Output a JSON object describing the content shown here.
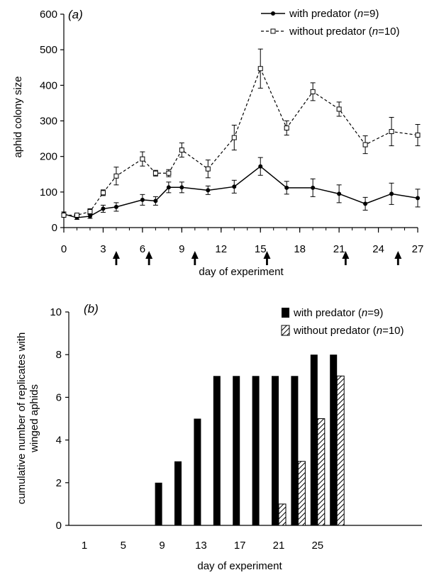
{
  "chart_data": [
    {
      "type": "line",
      "panel_label": "(a)",
      "ylabel": "aphid colony size",
      "xlabel": "day of experiment",
      "ylim": [
        0,
        600
      ],
      "xlim": [
        0,
        27
      ],
      "yticks": [
        "0",
        "100",
        "200",
        "300",
        "400",
        "500",
        "600"
      ],
      "xticks": [
        "0",
        "3",
        "6",
        "9",
        "12",
        "15",
        "18",
        "21",
        "24",
        "27"
      ],
      "arrow_days": [
        4,
        6.5,
        10,
        15.5,
        21.5,
        25.5
      ],
      "legend_position": "top-right",
      "series": [
        {
          "name": "with predator (n=9)",
          "legend_prefix": "with predator (",
          "legend_italic": "n",
          "legend_suffix": "=9)",
          "style": "solid",
          "marker": "filled-circle",
          "x": [
            0,
            1,
            2,
            3,
            4,
            6,
            7,
            8,
            9,
            11,
            13,
            15,
            17,
            19,
            21,
            23,
            25,
            27
          ],
          "y": [
            38,
            28,
            32,
            53,
            58,
            78,
            75,
            113,
            113,
            105,
            115,
            172,
            112,
            112,
            95,
            67,
            95,
            83
          ],
          "err": [
            6,
            5,
            6,
            10,
            12,
            15,
            12,
            15,
            15,
            12,
            18,
            25,
            18,
            25,
            25,
            18,
            30,
            25
          ]
        },
        {
          "name": "without predator (n=10)",
          "legend_prefix": "without predator (",
          "legend_italic": "n",
          "legend_suffix": "=10)",
          "style": "dashed",
          "marker": "open-square",
          "x": [
            0,
            1,
            2,
            3,
            4,
            6,
            7,
            8,
            9,
            11,
            13,
            15,
            17,
            19,
            21,
            23,
            25,
            27
          ],
          "y": [
            35,
            35,
            45,
            98,
            145,
            193,
            153,
            153,
            218,
            165,
            253,
            447,
            280,
            382,
            333,
            233,
            270,
            260
          ],
          "err": [
            6,
            5,
            8,
            8,
            25,
            20,
            8,
            10,
            20,
            25,
            35,
            55,
            20,
            25,
            20,
            25,
            40,
            30
          ]
        }
      ]
    },
    {
      "type": "bar",
      "panel_label": "(b)",
      "ylabel": "cumulative number of replicates with winged aphids",
      "ylabel_line1": "cumulative number of replicates with",
      "ylabel_line2": "winged aphids",
      "xlabel": "day of experiment",
      "ylim": [
        0,
        10
      ],
      "yticks": [
        "0",
        "2",
        "4",
        "6",
        "8",
        "10"
      ],
      "xticks": [
        "1",
        "5",
        "9",
        "13",
        "17",
        "21",
        "25"
      ],
      "categories": [
        1,
        3,
        5,
        7,
        9,
        11,
        13,
        15,
        17,
        19,
        21,
        23,
        25,
        27
      ],
      "legend_position": "top-right",
      "series": [
        {
          "name": "with predator (n=9)",
          "legend_prefix": "with predator (",
          "legend_italic": "n",
          "legend_suffix": "=9)",
          "fill": "#000000",
          "values": [
            0,
            0,
            0,
            0,
            2,
            3,
            5,
            7,
            7,
            7,
            7,
            7,
            8,
            8
          ]
        },
        {
          "name": "without predator (n=10)",
          "legend_prefix": "without predator (",
          "legend_italic": "n",
          "legend_suffix": "=10)",
          "fill": "hatched",
          "values": [
            0,
            0,
            0,
            0,
            0,
            0,
            0,
            0,
            0,
            0,
            1,
            3,
            5,
            7
          ]
        }
      ]
    }
  ]
}
